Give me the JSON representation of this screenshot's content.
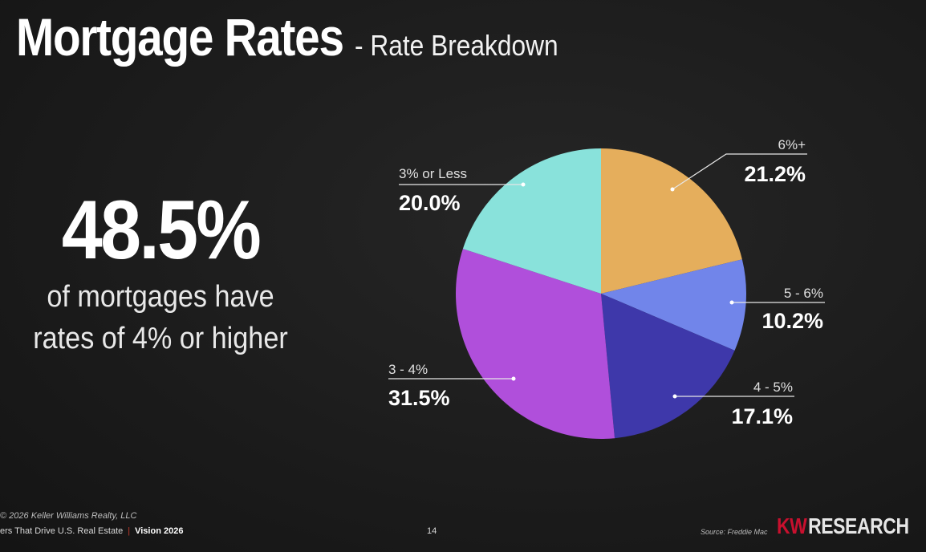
{
  "header": {
    "title": "Mortgage Rates",
    "subtitle": "- Rate Breakdown"
  },
  "highlight": {
    "value": "48.5%",
    "caption_line1": "of mortgages have",
    "caption_line2": "rates of 4% or higher"
  },
  "chart_data": {
    "type": "pie",
    "title": "",
    "slices": [
      {
        "label": "6%+",
        "value": 21.2,
        "display": "21.2%",
        "color": "#e5ae5c"
      },
      {
        "label": "5 - 6%",
        "value": 10.2,
        "display": "10.2%",
        "color": "#7185ea"
      },
      {
        "label": "4 - 5%",
        "value": 17.1,
        "display": "17.1%",
        "color": "#3e38aa"
      },
      {
        "label": "3 - 4%",
        "value": 31.5,
        "display": "31.5%",
        "color": "#b04fdb"
      },
      {
        "label": "3% or Less",
        "value": 20.0,
        "display": "20.0%",
        "color": "#89e2db"
      }
    ]
  },
  "footer": {
    "copyright": "© 2026 Keller Williams Realty, LLC",
    "left_text": "ers That Drive U.S. Real Estate",
    "separator": "|",
    "vision": "Vision 2026",
    "page_number": "14",
    "source": "Source: Freddie Mac",
    "brand_kw": "KW",
    "brand_research": "RESEARCH"
  }
}
